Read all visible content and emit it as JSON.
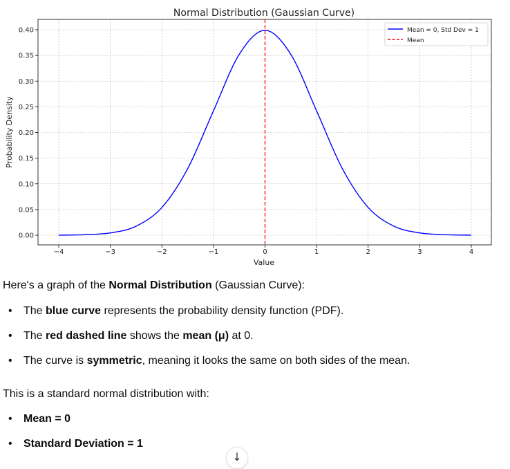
{
  "chart_data": {
    "type": "line",
    "title": "Normal Distribution (Gaussian Curve)",
    "xlabel": "Value",
    "ylabel": "Probability Density",
    "xlim": [
      -4,
      4
    ],
    "ylim": [
      0,
      0.4
    ],
    "x_ticks": [
      -4,
      -3,
      -2,
      -1,
      0,
      1,
      2,
      3,
      4
    ],
    "x_tick_labels": [
      "−4",
      "−3",
      "−2",
      "−1",
      "0",
      "1",
      "2",
      "3",
      "4"
    ],
    "y_ticks": [
      0.0,
      0.05,
      0.1,
      0.15,
      0.2,
      0.25,
      0.3,
      0.35,
      0.4
    ],
    "y_tick_labels": [
      "0.00",
      "0.05",
      "0.10",
      "0.15",
      "0.20",
      "0.25",
      "0.30",
      "0.35",
      "0.40"
    ],
    "grid": true,
    "legend_position": "top-right",
    "series": [
      {
        "name": "Mean = 0, Std Dev = 1",
        "color": "#0000ff",
        "style": "solid",
        "x": [
          -4,
          -3.5,
          -3,
          -2.5,
          -2,
          -1.5,
          -1,
          -0.5,
          0,
          0.5,
          1,
          1.5,
          2,
          2.5,
          3,
          3.5,
          4
        ],
        "y": [
          0.0001,
          0.0009,
          0.0044,
          0.0175,
          0.054,
          0.1295,
          0.242,
          0.3521,
          0.3989,
          0.3521,
          0.242,
          0.1295,
          0.054,
          0.0175,
          0.0044,
          0.0009,
          0.0001
        ]
      },
      {
        "name": "Mean",
        "color": "#ff0000",
        "style": "dashed",
        "type": "vline",
        "x_value": 0
      }
    ]
  },
  "message": {
    "intro_prefix": "Here's a graph of the ",
    "intro_bold": "Normal Distribution",
    "intro_suffix": " (Gaussian Curve):",
    "bullets": [
      {
        "pre": "The ",
        "bold": "blue curve",
        "post": " represents the probability density function (PDF)."
      },
      {
        "pre": "The ",
        "bold": "red dashed line",
        "post": " shows the ",
        "bold2": "mean (μ)",
        "post2": " at 0."
      },
      {
        "pre": "The curve is ",
        "bold": "symmetric",
        "post": ", meaning it looks the same on both sides of the mean."
      }
    ],
    "outro": "This is a standard normal distribution with:",
    "params": [
      {
        "bold": "Mean = 0"
      },
      {
        "bold": "Standard Deviation = 1"
      }
    ],
    "bullet_glyph": "•"
  },
  "scroll_button": {
    "icon": "arrow-down-icon",
    "glyph": "↓"
  }
}
